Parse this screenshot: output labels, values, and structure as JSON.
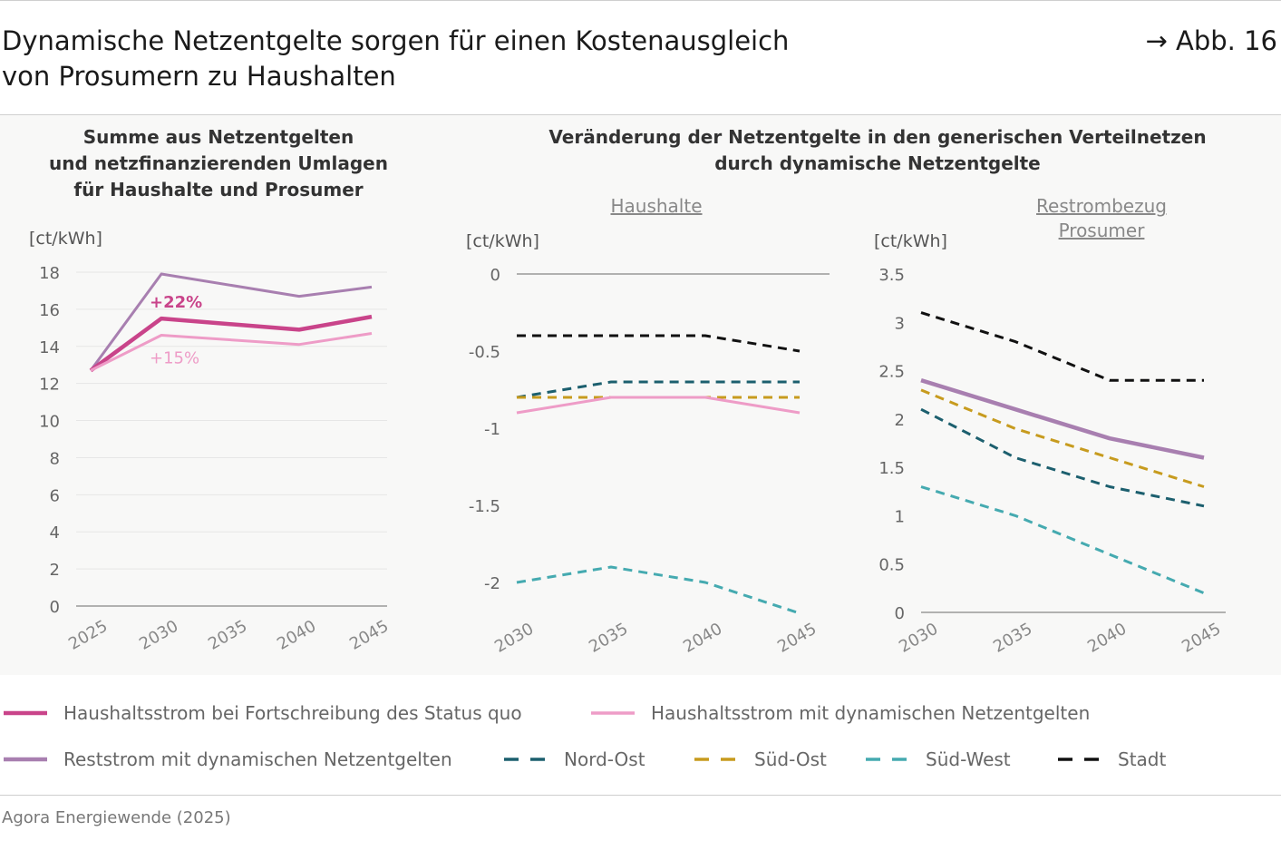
{
  "header": {
    "title_line1": "Dynamische Netzentgelte sorgen für einen Kostenausgleich",
    "title_line2": "von Prosumern zu Haushalten",
    "figure_ref": "→ Abb. 16"
  },
  "left_panel": {
    "title_lines": [
      "Summe aus Netzentgelten",
      "und netzfinanzierenden Umlagen",
      "für Haushalte und Prosumer"
    ],
    "unit": "[ct/kWh]"
  },
  "right_panel": {
    "title_lines": [
      "Veränderung der Netzentgelte in den generischen Verteilnetzen",
      "durch dynamische Netzentgelte"
    ],
    "sub_left": "Haushalte",
    "sub_right_lines": [
      "Restrombezug",
      "Prosumer"
    ],
    "unit_left": "[ct/kWh]",
    "unit_right": "[ct/kWh]"
  },
  "colors": {
    "status_quo": "#c9448a",
    "dynamic": "#ee9cc7",
    "reststrom": "#a87fb0",
    "nord_ost": "#1c5f6e",
    "sued_ost": "#c79b1e",
    "sued_west": "#45aab0",
    "stadt": "#111111"
  },
  "chart_data": [
    {
      "type": "line",
      "x": [
        "2025",
        "2030",
        "2035",
        "2040",
        "2045"
      ],
      "ylim": [
        0,
        18
      ],
      "yticks": [
        "0",
        "2",
        "4",
        "6",
        "8",
        "10",
        "12",
        "14",
        "16",
        "18"
      ],
      "grid": true,
      "series": [
        {
          "name": "Reststrom mit dynamischen Netzentgelten",
          "key": "reststrom",
          "values": [
            12.7,
            17.9,
            null,
            16.7,
            17.2
          ]
        },
        {
          "name": "Haushaltsstrom bei Fortschreibung des Status quo",
          "key": "status_quo",
          "values": [
            12.7,
            15.5,
            null,
            14.9,
            15.6
          ]
        },
        {
          "name": "Haushaltsstrom mit dynamischen Netzentgelten",
          "key": "dynamic",
          "values": [
            12.7,
            14.6,
            null,
            14.1,
            14.7
          ]
        }
      ],
      "annotations": [
        {
          "text": "+22%",
          "key": "status_quo"
        },
        {
          "text": "+15%",
          "key": "dynamic"
        }
      ]
    },
    {
      "type": "line",
      "x": [
        "2030",
        "2035",
        "2040",
        "2045"
      ],
      "ylim": [
        -2.2,
        0
      ],
      "yticks": [
        "0",
        "-0.5",
        "-1",
        "-1.5",
        "-2"
      ],
      "series": [
        {
          "name": "Stadt",
          "key": "stadt",
          "dashed": true,
          "values": [
            -0.4,
            -0.4,
            -0.4,
            -0.5
          ]
        },
        {
          "name": "Nord-Ost",
          "key": "nord_ost",
          "dashed": true,
          "values": [
            -0.8,
            -0.7,
            -0.7,
            -0.7
          ]
        },
        {
          "name": "Süd-Ost",
          "key": "sued_ost",
          "dashed": true,
          "values": [
            -0.8,
            -0.8,
            -0.8,
            -0.8
          ]
        },
        {
          "name": "Haushaltsstrom mit dynamischen Netzentgelten",
          "key": "dynamic",
          "dashed": false,
          "values": [
            -0.9,
            -0.8,
            -0.8,
            -0.9
          ]
        },
        {
          "name": "Süd-West",
          "key": "sued_west",
          "dashed": true,
          "values": [
            -2.0,
            -1.9,
            -2.0,
            -2.2
          ]
        }
      ]
    },
    {
      "type": "line",
      "x": [
        "2030",
        "2035",
        "2040",
        "2045"
      ],
      "ylim": [
        0,
        3.5
      ],
      "yticks": [
        "0",
        "0.5",
        "1",
        "1.5",
        "2",
        "2.5",
        "3",
        "3.5"
      ],
      "series": [
        {
          "name": "Stadt",
          "key": "stadt",
          "dashed": true,
          "values": [
            3.1,
            2.8,
            2.4,
            2.4
          ]
        },
        {
          "name": "Reststrom mit dynamischen Netzentgelten",
          "key": "reststrom",
          "dashed": false,
          "values": [
            2.4,
            2.1,
            1.8,
            1.6
          ]
        },
        {
          "name": "Süd-Ost",
          "key": "sued_ost",
          "dashed": true,
          "values": [
            2.3,
            1.9,
            1.6,
            1.3
          ]
        },
        {
          "name": "Nord-Ost",
          "key": "nord_ost",
          "dashed": true,
          "values": [
            2.1,
            1.6,
            1.3,
            1.1
          ]
        },
        {
          "name": "Süd-West",
          "key": "sued_west",
          "dashed": true,
          "values": [
            1.3,
            1.0,
            0.6,
            0.2
          ]
        }
      ]
    }
  ],
  "legend": [
    {
      "label": "Haushaltsstrom bei Fortschreibung des Status quo",
      "key": "status_quo",
      "dashed": false
    },
    {
      "label": "Haushaltsstrom mit dynamischen Netzentgelten",
      "key": "dynamic",
      "dashed": false
    },
    {
      "label": "Reststrom mit dynamischen Netzentgelten",
      "key": "reststrom",
      "dashed": false
    },
    {
      "label": "Nord-Ost",
      "key": "nord_ost",
      "dashed": true
    },
    {
      "label": "Süd-Ost",
      "key": "sued_ost",
      "dashed": true
    },
    {
      "label": "Süd-West",
      "key": "sued_west",
      "dashed": true
    },
    {
      "label": "Stadt",
      "key": "stadt",
      "dashed": true
    }
  ],
  "source": "Agora Energiewende (2025)"
}
